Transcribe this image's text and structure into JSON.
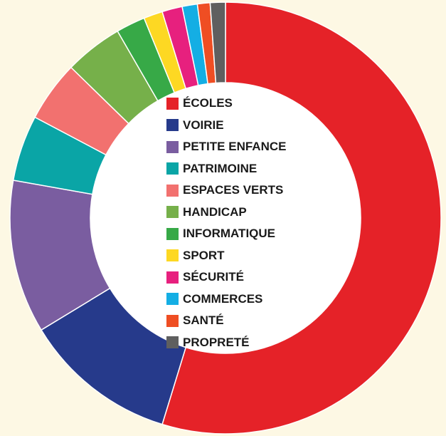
{
  "chart_data": {
    "type": "pie",
    "variant": "donut",
    "title": "",
    "legend_placement": "center",
    "categories": [
      "ÉCOLES",
      "VOIRIE",
      "PETITE ENFANCE",
      "PATRIMOINE",
      "ESPACES VERTS",
      "HANDICAP",
      "INFORMATIQUE",
      "SPORT",
      "SÉCURITÉ",
      "COMMERCES",
      "SANTÉ",
      "PROPRETÉ"
    ],
    "values": [
      57.7,
      12.2,
      12.1,
      5.2,
      4.8,
      4.6,
      2.3,
      1.5,
      1.6,
      1.2,
      1.0,
      1.2
    ],
    "colors": [
      "#e52228",
      "#263a8b",
      "#7a5da0",
      "#0aa5a6",
      "#f2716f",
      "#76b04a",
      "#37a947",
      "#fdd823",
      "#e7207e",
      "#14aee4",
      "#ef4e23",
      "#5f5f5f"
    ]
  }
}
